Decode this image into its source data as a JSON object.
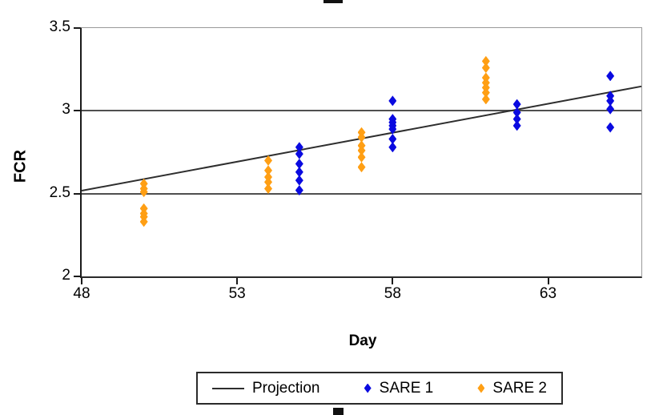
{
  "chart_data": {
    "type": "scatter",
    "title": "",
    "xlabel": "Day",
    "ylabel": "FCR",
    "xlim": [
      48,
      66
    ],
    "ylim": [
      2,
      3.5
    ],
    "x_ticks": [
      {
        "value": 48,
        "label": "48"
      },
      {
        "value": 53,
        "label": "53"
      },
      {
        "value": 58,
        "label": "58"
      },
      {
        "value": 63,
        "label": "63"
      }
    ],
    "y_ticks": [
      {
        "value": 2,
        "label": "2"
      },
      {
        "value": 2.5,
        "label": "2.5"
      },
      {
        "value": 3,
        "label": "3"
      },
      {
        "value": 3.5,
        "label": "3.5"
      }
    ],
    "gridlines": [
      2.5,
      3
    ],
    "grid": "horizontal-only",
    "legend_position": "bottom",
    "trendline": {
      "name": "Projection",
      "color": "#2e2e2e",
      "points": [
        {
          "day": 48,
          "fcr": 2.52
        },
        {
          "day": 66,
          "fcr": 3.15
        }
      ]
    },
    "series": [
      {
        "name": "SARE 1",
        "color": "#0a0ae0",
        "marker": "diamond",
        "clusters": [
          {
            "day": 55,
            "values": [
              2.78,
              2.74,
              2.68,
              2.63,
              2.58,
              2.52
            ]
          },
          {
            "day": 58,
            "values": [
              3.06,
              2.95,
              2.93,
              2.91,
              2.89,
              2.83,
              2.78
            ]
          },
          {
            "day": 62,
            "values": [
              3.04,
              2.99,
              2.95,
              2.91
            ]
          },
          {
            "day": 65,
            "values": [
              3.21,
              3.09,
              3.06,
              3.01,
              2.9
            ]
          }
        ]
      },
      {
        "name": "SARE 2",
        "color": "#ff9f14",
        "marker": "diamond",
        "clusters": [
          {
            "day": 50,
            "values": [
              2.56,
              2.53,
              2.51,
              2.41,
              2.38,
              2.36,
              2.33
            ]
          },
          {
            "day": 54,
            "values": [
              2.7,
              2.64,
              2.6,
              2.57,
              2.53
            ]
          },
          {
            "day": 57,
            "values": [
              2.87,
              2.84,
              2.79,
              2.76,
              2.72,
              2.66
            ]
          },
          {
            "day": 61,
            "values": [
              3.3,
              3.26,
              3.2,
              3.17,
              3.14,
              3.11,
              3.07
            ]
          }
        ]
      }
    ]
  },
  "legend": {
    "items": [
      {
        "label": "Projection",
        "swatch": "line",
        "color": "#2e2e2e"
      },
      {
        "label": "SARE 1",
        "swatch": "diamond",
        "color": "#0a0ae0"
      },
      {
        "label": "SARE 2",
        "swatch": "diamond",
        "color": "#ff9f14"
      }
    ]
  }
}
